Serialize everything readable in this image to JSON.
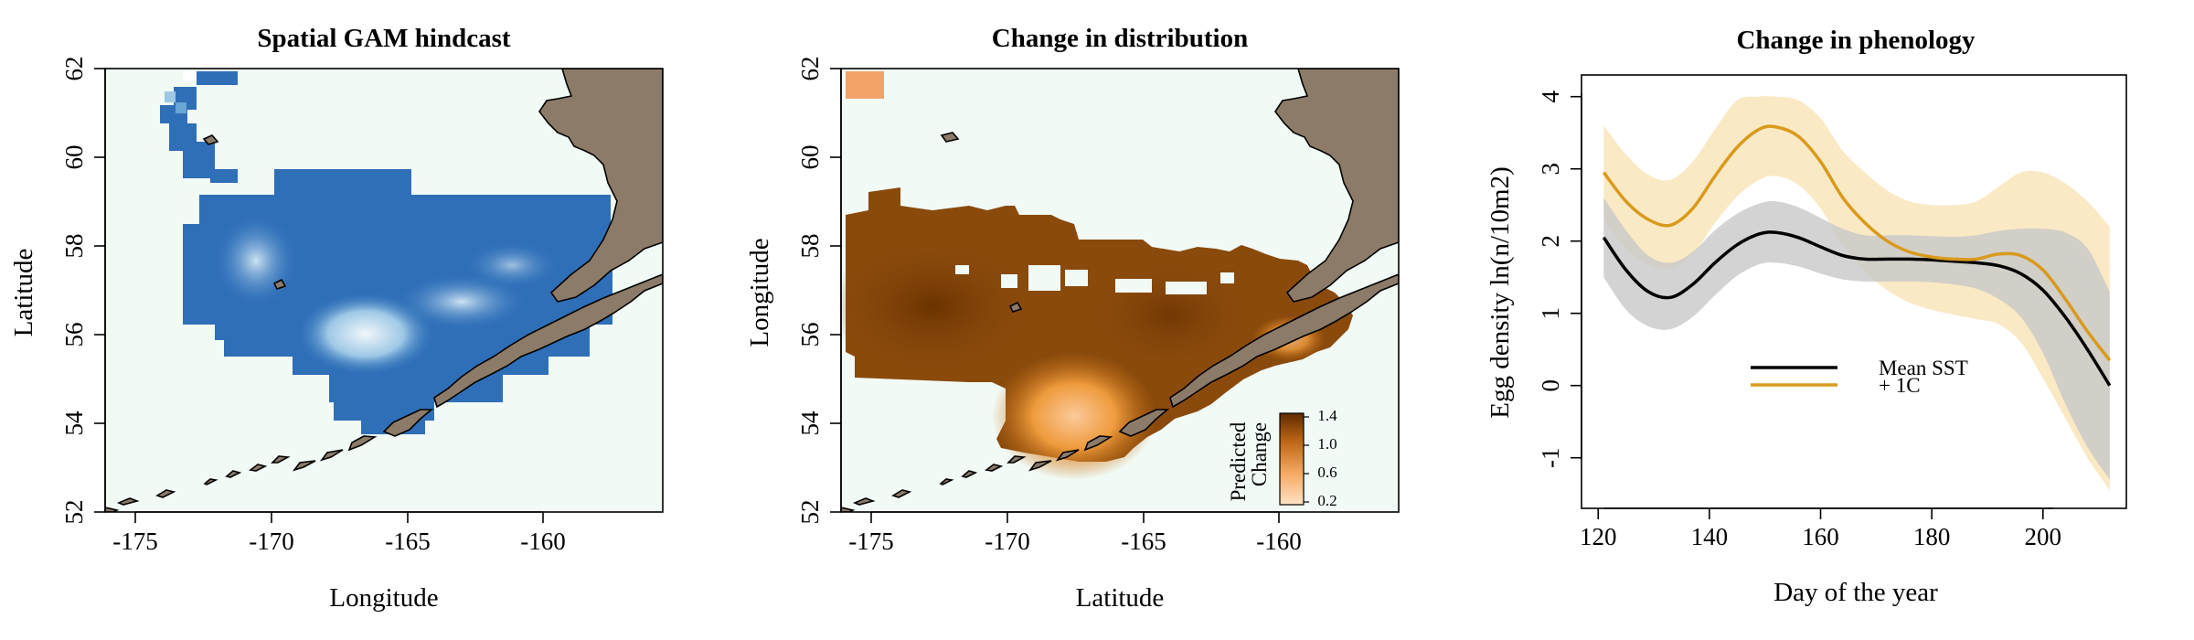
{
  "panels": [
    {
      "title": "Spatial GAM hindcast",
      "xlabel": "Longitude",
      "ylabel": "Latitude",
      "x_ticks": [
        "-175",
        "-170",
        "-165",
        "-160"
      ],
      "y_ticks": [
        "52",
        "54",
        "56",
        "58",
        "60",
        "62"
      ]
    },
    {
      "title": "Change in distribution",
      "xlabel": "Latitude",
      "ylabel": "Longitude",
      "x_ticks": [
        "-175",
        "-170",
        "-165",
        "-160"
      ],
      "y_ticks": [
        "52",
        "54",
        "56",
        "58",
        "60",
        "62"
      ],
      "colorbar": {
        "title_line1": "Predicted",
        "title_line2": "Change",
        "ticks": [
          "0.2",
          "0.6",
          "1.0",
          "1.4"
        ]
      }
    },
    {
      "title": "Change in phenology",
      "xlabel": "Day of the year",
      "ylabel": "Egg density ln(n/10m2)",
      "x_ticks": [
        "120",
        "140",
        "160",
        "180",
        "200"
      ],
      "y_ticks": [
        "-1",
        "0",
        "1",
        "2",
        "3",
        "4"
      ],
      "legend": [
        "Mean SST",
        "+ 1C"
      ]
    }
  ],
  "chart_data": [
    {
      "type": "heatmap",
      "title": "Spatial GAM hindcast",
      "xlabel": "Longitude",
      "ylabel": "Latitude",
      "xlim": [
        -176.5,
        -156.5
      ],
      "ylim": [
        52,
        62
      ],
      "color_scale": [
        "#f1faf5",
        "#2f6fb8"
      ],
      "land_color": "#8c7b68"
    },
    {
      "type": "heatmap",
      "title": "Change in distribution",
      "xlabel": "Latitude",
      "ylabel": "Longitude",
      "xlim": [
        -176.5,
        -156.5
      ],
      "ylim": [
        52,
        62
      ],
      "color_scale": [
        "#fdd9b5",
        "#6b3200"
      ],
      "colorbar_range": [
        0.2,
        1.4
      ],
      "land_color": "#8c7b68"
    },
    {
      "type": "line",
      "title": "Change in phenology",
      "xlabel": "Day of the year",
      "ylabel": "Egg density ln(n/10m2)",
      "xlim": [
        117,
        215
      ],
      "ylim": [
        -1.7,
        4.3
      ],
      "series": [
        {
          "name": "Mean SST",
          "color": "#000000",
          "band_color": "#c8c8c8",
          "x": [
            121,
            125,
            129,
            133,
            137,
            141,
            145,
            149,
            152,
            156,
            160,
            164,
            168,
            172,
            176,
            180,
            184,
            188,
            192,
            196,
            200,
            204,
            208,
            212
          ],
          "y": [
            2.05,
            1.6,
            1.3,
            1.22,
            1.4,
            1.7,
            1.95,
            2.1,
            2.12,
            2.05,
            1.92,
            1.8,
            1.75,
            1.75,
            1.75,
            1.74,
            1.72,
            1.7,
            1.66,
            1.55,
            1.32,
            0.95,
            0.5,
            0.0
          ],
          "lower": [
            1.5,
            1.05,
            0.82,
            0.78,
            0.95,
            1.25,
            1.52,
            1.68,
            1.7,
            1.65,
            1.55,
            1.47,
            1.44,
            1.44,
            1.44,
            1.43,
            1.4,
            1.34,
            1.2,
            0.95,
            0.45,
            -0.25,
            -0.85,
            -1.3
          ],
          "upper": [
            2.6,
            2.15,
            1.8,
            1.7,
            1.85,
            2.15,
            2.38,
            2.52,
            2.55,
            2.47,
            2.32,
            2.17,
            2.08,
            2.08,
            2.08,
            2.07,
            2.06,
            2.08,
            2.14,
            2.17,
            2.17,
            2.12,
            1.9,
            1.3
          ]
        },
        {
          "name": "+ 1C",
          "color": "#d99a1c",
          "band_color": "#f8e1b2",
          "x": [
            121,
            125,
            129,
            133,
            137,
            141,
            145,
            149,
            152,
            156,
            160,
            164,
            168,
            172,
            176,
            180,
            184,
            188,
            192,
            196,
            200,
            204,
            208,
            212
          ],
          "y": [
            2.95,
            2.55,
            2.3,
            2.22,
            2.45,
            2.9,
            3.3,
            3.55,
            3.58,
            3.45,
            3.1,
            2.6,
            2.25,
            2.0,
            1.85,
            1.78,
            1.75,
            1.75,
            1.82,
            1.8,
            1.6,
            1.2,
            0.75,
            0.35
          ],
          "lower": [
            2.3,
            1.9,
            1.68,
            1.62,
            1.82,
            2.25,
            2.62,
            2.85,
            2.9,
            2.78,
            2.45,
            1.95,
            1.58,
            1.32,
            1.15,
            1.05,
            0.98,
            0.92,
            0.85,
            0.6,
            0.1,
            -0.45,
            -1.0,
            -1.45
          ],
          "upper": [
            3.6,
            3.2,
            2.92,
            2.85,
            3.1,
            3.55,
            3.95,
            4.0,
            4.0,
            3.95,
            3.7,
            3.25,
            2.95,
            2.7,
            2.55,
            2.5,
            2.5,
            2.55,
            2.75,
            2.95,
            2.95,
            2.8,
            2.55,
            2.2
          ]
        }
      ]
    }
  ]
}
